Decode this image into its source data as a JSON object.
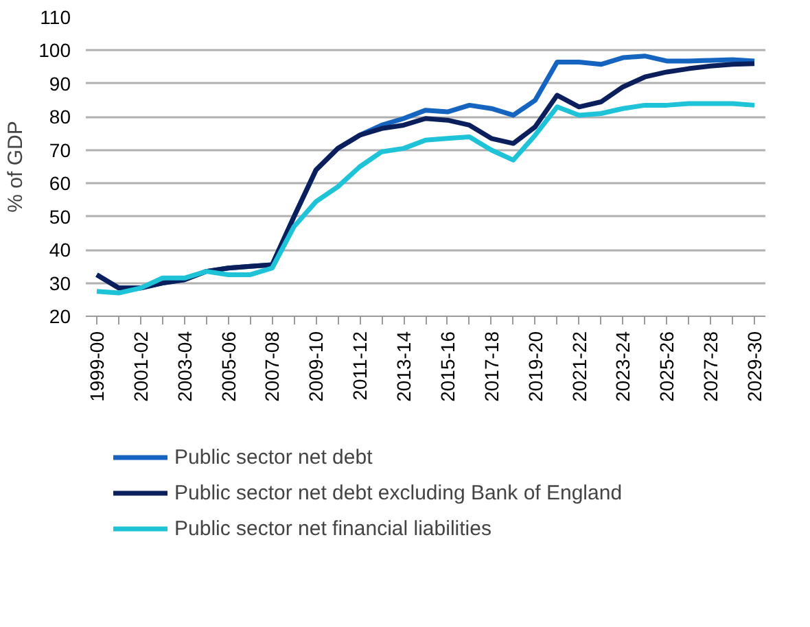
{
  "chart_data": {
    "type": "line",
    "ylabel": "% of GDP",
    "categories": [
      "1999-00",
      null,
      "2001-02",
      null,
      "2003-04",
      null,
      "2005-06",
      null,
      "2007-08",
      null,
      "2009-10",
      null,
      "2011-12",
      null,
      "2013-14",
      null,
      "2015-16",
      null,
      "2017-18",
      null,
      "2019-20",
      null,
      "2021-22",
      null,
      "2023-24",
      null,
      "2025-26",
      null,
      "2027-28",
      null,
      "2029-30"
    ],
    "series": [
      {
        "name": "Public sector net debt",
        "color": "#1565c0",
        "values": [
          32.5,
          28.5,
          28.5,
          30,
          31,
          33.5,
          34.5,
          35,
          35.5,
          50,
          64,
          70.5,
          74.5,
          77.5,
          79.5,
          82,
          81.5,
          83.5,
          82.5,
          80.5,
          85,
          96.5,
          96.5,
          95.8,
          97.8,
          98.3,
          96.8,
          96.8,
          97,
          97.2,
          96.8
        ]
      },
      {
        "name": "Public sector net debt excluding Bank of England",
        "color": "#0a1f5c",
        "values": [
          32.5,
          28.5,
          28.5,
          30,
          31,
          33.5,
          34.5,
          35,
          35.5,
          50,
          64,
          70.5,
          74.5,
          76.5,
          77.5,
          79.5,
          79,
          77.5,
          73.5,
          72,
          77,
          86.5,
          83,
          84.5,
          89,
          92,
          93.5,
          94.5,
          95.3,
          95.8,
          96
        ]
      },
      {
        "name": "Public sector net financial liabilities",
        "color": "#1ec3d8",
        "values": [
          27.5,
          27,
          28.5,
          31.5,
          31.5,
          33.5,
          32.5,
          32.5,
          34.5,
          47,
          54.5,
          59,
          65,
          69.5,
          70.5,
          73,
          73.5,
          74,
          70,
          67,
          74.5,
          83,
          80.5,
          81,
          82.5,
          83.5,
          83.5,
          84,
          84,
          84,
          83.5
        ]
      }
    ],
    "ylim": [
      20,
      110
    ],
    "yticks": [
      20,
      30,
      40,
      50,
      60,
      70,
      80,
      90,
      100,
      110
    ],
    "grid": "y",
    "legend": "bottom",
    "marker": "none",
    "line_style": "solid"
  }
}
